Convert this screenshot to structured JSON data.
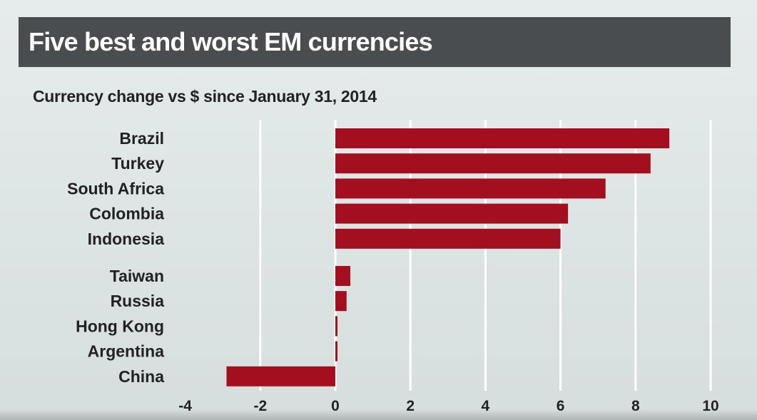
{
  "chart_data": {
    "type": "bar",
    "orientation": "horizontal",
    "title": "Five best and worst EM currencies",
    "subtitle": "Currency change vs $ since January 31, 2014",
    "groups": [
      {
        "name": "best",
        "categories": [
          "Brazil",
          "Turkey",
          "South Africa",
          "Colombia",
          "Indonesia"
        ],
        "values": [
          8.9,
          8.4,
          7.2,
          6.2,
          6.0
        ]
      },
      {
        "name": "worst",
        "categories": [
          "Taiwan",
          "Russia",
          "Hong Kong",
          "Argentina",
          "China"
        ],
        "values": [
          0.4,
          0.3,
          0.05,
          0.05,
          -2.9
        ]
      }
    ],
    "xlim": [
      -4,
      10
    ],
    "xticks": [
      -4,
      -2,
      0,
      2,
      4,
      6,
      8,
      10
    ],
    "xticklabels": [
      "-4",
      "-2",
      "0",
      "2",
      "4",
      "6",
      "8",
      "10"
    ],
    "xlabel": "",
    "ylabel": "",
    "grid": true,
    "bar_color": "#a30f1f",
    "grid_color": "#ffffff"
  }
}
